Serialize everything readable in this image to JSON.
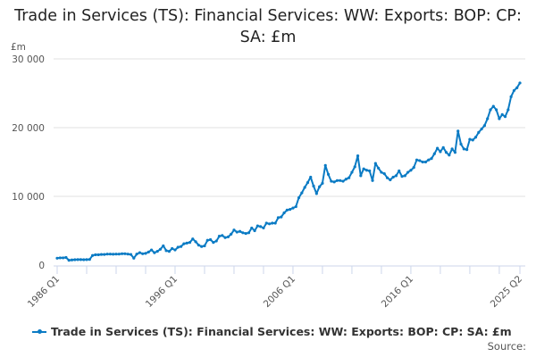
{
  "chart_data": {
    "type": "line",
    "title": "Trade in Services (TS): Financial Services: WW: Exports: BOP: CP: SA: £m",
    "ylabel": "£m",
    "xlabel": "",
    "ylim": [
      0,
      30000
    ],
    "yticks": [
      "0",
      "10 000",
      "20 000",
      "30 000"
    ],
    "ytick_values": [
      0,
      10000,
      20000,
      30000
    ],
    "xtick_labels": [
      "1986 Q1",
      "1996 Q1",
      "2006 Q1",
      "2016 Q1",
      "2025 Q2"
    ],
    "x_start": "1986 Q1",
    "x_end": "2025 Q2",
    "grid": true,
    "legend_position": "bottom",
    "series": [
      {
        "name": "Trade in Services (TS): Financial Services: WW: Exports: BOP: CP: SA: £m",
        "color": "#0b7bc4",
        "values": [
          1000,
          1050,
          1050,
          1100,
          700,
          750,
          780,
          800,
          800,
          780,
          800,
          820,
          1400,
          1500,
          1500,
          1550,
          1550,
          1600,
          1600,
          1580,
          1600,
          1600,
          1650,
          1650,
          1600,
          1550,
          1000,
          1600,
          1800,
          1650,
          1700,
          1900,
          2200,
          1800,
          2000,
          2300,
          2800,
          2100,
          2000,
          2400,
          2200,
          2600,
          2700,
          3100,
          3200,
          3300,
          3800,
          3400,
          2900,
          2700,
          2800,
          3600,
          3700,
          3300,
          3500,
          4200,
          4300,
          4000,
          4100,
          4500,
          5100,
          4800,
          4900,
          4700,
          4600,
          4700,
          5400,
          5000,
          5700,
          5600,
          5400,
          6100,
          6000,
          6100,
          6100,
          6900,
          7000,
          7600,
          8000,
          8100,
          8300,
          8500,
          9800,
          10500,
          11300,
          12000,
          12800,
          11500,
          10400,
          11400,
          11900,
          14500,
          13200,
          12200,
          12100,
          12300,
          12300,
          12200,
          12500,
          12700,
          13500,
          14300,
          15900,
          13000,
          14000,
          13800,
          13700,
          12300,
          14800,
          14100,
          13500,
          13300,
          12700,
          12400,
          12800,
          13000,
          13700,
          12900,
          13000,
          13500,
          13800,
          14200,
          15300,
          15200,
          15000,
          15000,
          15300,
          15500,
          16200,
          17000,
          16500,
          17100,
          16400,
          16000,
          16900,
          16400,
          19500,
          17600,
          16900,
          16800,
          18300,
          18200,
          18600,
          19300,
          19800,
          20300,
          21300,
          22600,
          23100,
          22600,
          21300,
          21900,
          21600,
          22600,
          24500,
          25400,
          25800,
          26500
        ]
      }
    ]
  },
  "source_label": "Source:"
}
